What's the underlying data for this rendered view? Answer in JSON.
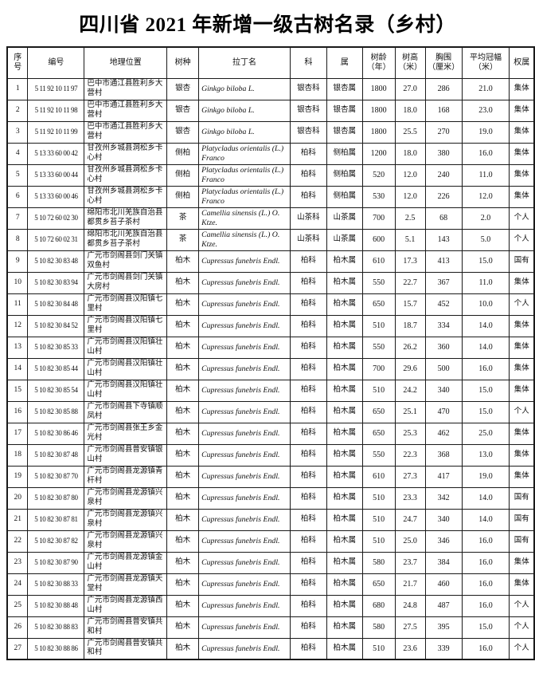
{
  "title": "四川省 2021 年新增一级古树名录（乡村）",
  "table": {
    "columns": [
      {
        "key": "index",
        "label": "序\n号"
      },
      {
        "key": "code",
        "label": "编号"
      },
      {
        "key": "location",
        "label": "地理位置"
      },
      {
        "key": "species",
        "label": "树种"
      },
      {
        "key": "latin",
        "label": "拉丁名"
      },
      {
        "key": "family",
        "label": "科"
      },
      {
        "key": "genus",
        "label": "属"
      },
      {
        "key": "age",
        "label": "树龄\n（年）"
      },
      {
        "key": "height",
        "label": "树高\n（米）"
      },
      {
        "key": "girth",
        "label": "胸围\n（厘米）"
      },
      {
        "key": "crown",
        "label": "平均冠幅\n（米）"
      },
      {
        "key": "ownership",
        "label": "权属"
      }
    ],
    "rows": [
      {
        "index": "1",
        "code": "5 11 92 10 11 97",
        "location": "巴中市通江县胜利乡大营村",
        "species": "银杏",
        "latin": "Ginkgo biloba L.",
        "family": "银杏科",
        "genus": "银杏属",
        "age": "1800",
        "height": "27.0",
        "girth": "286",
        "crown": "21.0",
        "ownership": "集体"
      },
      {
        "index": "2",
        "code": "5 11 92 10 11 98",
        "location": "巴中市通江县胜利乡大营村",
        "species": "银杏",
        "latin": "Ginkgo biloba L.",
        "family": "银杏科",
        "genus": "银杏属",
        "age": "1800",
        "height": "18.0",
        "girth": "168",
        "crown": "23.0",
        "ownership": "集体"
      },
      {
        "index": "3",
        "code": "5 11 92 10 11 99",
        "location": "巴中市通江县胜利乡大营村",
        "species": "银杏",
        "latin": "Ginkgo biloba L.",
        "family": "银杏科",
        "genus": "银杏属",
        "age": "1800",
        "height": "25.5",
        "girth": "270",
        "crown": "19.0",
        "ownership": "集体"
      },
      {
        "index": "4",
        "code": "5 13 33 60 00 42",
        "location": "甘孜州乡城县洞松乡卡心村",
        "species": "侧柏",
        "latin": "Platycladus orientalis (L.) Franco",
        "family": "柏科",
        "genus": "侧柏属",
        "age": "1200",
        "height": "18.0",
        "girth": "380",
        "crown": "16.0",
        "ownership": "集体"
      },
      {
        "index": "5",
        "code": "5 13 33 60 00 44",
        "location": "甘孜州乡城县洞松乡卡心村",
        "species": "侧柏",
        "latin": "Platycladus orientalis (L.) Franco",
        "family": "柏科",
        "genus": "侧柏属",
        "age": "520",
        "height": "12.0",
        "girth": "240",
        "crown": "11.0",
        "ownership": "集体"
      },
      {
        "index": "6",
        "code": "5 13 33 60 00 46",
        "location": "甘孜州乡城县洞松乡卡心村",
        "species": "侧柏",
        "latin": "Platycladus orientalis (L.) Franco",
        "family": "柏科",
        "genus": "侧柏属",
        "age": "530",
        "height": "12.0",
        "girth": "226",
        "crown": "12.0",
        "ownership": "集体"
      },
      {
        "index": "7",
        "code": "5 10 72 60 02 30",
        "location": "绵阳市北川羌族自治县都贯乡苔子茶村",
        "species": "茶",
        "latin": "Camellia sinensis (L.) O. Ktze.",
        "family": "山茶科",
        "genus": "山茶属",
        "age": "700",
        "height": "2.5",
        "girth": "68",
        "crown": "2.0",
        "ownership": "个人"
      },
      {
        "index": "8",
        "code": "5 10 72 60 02 31",
        "location": "绵阳市北川羌族自治县都贯乡苔子茶村",
        "species": "茶",
        "latin": "Camellia sinensis (L.) O. Ktze.",
        "family": "山茶科",
        "genus": "山茶属",
        "age": "600",
        "height": "5.1",
        "girth": "143",
        "crown": "5.0",
        "ownership": "个人"
      },
      {
        "index": "9",
        "code": "5 10 82 30 83 48",
        "location": "广元市剑阁县剑门关镇双鱼村",
        "species": "柏木",
        "latin": "Cupressus funebris Endl.",
        "family": "柏科",
        "genus": "柏木属",
        "age": "610",
        "height": "17.3",
        "girth": "413",
        "crown": "15.0",
        "ownership": "国有"
      },
      {
        "index": "10",
        "code": "5 10 82 30 83 94",
        "location": "广元市剑阁县剑门关镇大房村",
        "species": "柏木",
        "latin": "Cupressus funebris Endl.",
        "family": "柏科",
        "genus": "柏木属",
        "age": "550",
        "height": "22.7",
        "girth": "367",
        "crown": "11.0",
        "ownership": "集体"
      },
      {
        "index": "11",
        "code": "5 10 82 30 84 48",
        "location": "广元市剑阁县汉阳镇七里村",
        "species": "柏木",
        "latin": "Cupressus funebris Endl.",
        "family": "柏科",
        "genus": "柏木属",
        "age": "650",
        "height": "15.7",
        "girth": "452",
        "crown": "10.0",
        "ownership": "个人"
      },
      {
        "index": "12",
        "code": "5 10 82 30 84 52",
        "location": "广元市剑阁县汉阳镇七里村",
        "species": "柏木",
        "latin": "Cupressus funebris Endl.",
        "family": "柏科",
        "genus": "柏木属",
        "age": "510",
        "height": "18.7",
        "girth": "334",
        "crown": "14.0",
        "ownership": "集体"
      },
      {
        "index": "13",
        "code": "5 10 82 30 85 33",
        "location": "广元市剑阁县汉阳镇壮山村",
        "species": "柏木",
        "latin": "Cupressus funebris Endl.",
        "family": "柏科",
        "genus": "柏木属",
        "age": "550",
        "height": "26.2",
        "girth": "360",
        "crown": "14.0",
        "ownership": "集体"
      },
      {
        "index": "14",
        "code": "5 10 82 30 85 44",
        "location": "广元市剑阁县汉阳镇壮山村",
        "species": "柏木",
        "latin": "Cupressus funebris Endl.",
        "family": "柏科",
        "genus": "柏木属",
        "age": "700",
        "height": "29.6",
        "girth": "500",
        "crown": "16.0",
        "ownership": "集体"
      },
      {
        "index": "15",
        "code": "5 10 82 30 85 54",
        "location": "广元市剑阁县汉阳镇壮山村",
        "species": "柏木",
        "latin": "Cupressus funebris Endl.",
        "family": "柏科",
        "genus": "柏木属",
        "age": "510",
        "height": "24.2",
        "girth": "340",
        "crown": "15.0",
        "ownership": "集体"
      },
      {
        "index": "16",
        "code": "5 10 82 30 85 88",
        "location": "广元市剑阁县下寺镇顺凤村",
        "species": "柏木",
        "latin": "Cupressus funebris Endl.",
        "family": "柏科",
        "genus": "柏木属",
        "age": "650",
        "height": "25.1",
        "girth": "470",
        "crown": "15.0",
        "ownership": "个人"
      },
      {
        "index": "17",
        "code": "5 10 82 30 86 46",
        "location": "广元市剑阁县张王乡金光村",
        "species": "柏木",
        "latin": "Cupressus funebris Endl.",
        "family": "柏科",
        "genus": "柏木属",
        "age": "650",
        "height": "25.3",
        "girth": "462",
        "crown": "25.0",
        "ownership": "集体"
      },
      {
        "index": "18",
        "code": "5 10 82 30 87 48",
        "location": "广元市剑阁县普安镇银山村",
        "species": "柏木",
        "latin": "Cupressus funebris Endl.",
        "family": "柏科",
        "genus": "柏木属",
        "age": "550",
        "height": "22.3",
        "girth": "368",
        "crown": "13.0",
        "ownership": "集体"
      },
      {
        "index": "19",
        "code": "5 10 82 30 87 70",
        "location": "广元市剑阁县龙源镇青杆村",
        "species": "柏木",
        "latin": "Cupressus funebris Endl.",
        "family": "柏科",
        "genus": "柏木属",
        "age": "610",
        "height": "27.3",
        "girth": "417",
        "crown": "19.0",
        "ownership": "集体"
      },
      {
        "index": "20",
        "code": "5 10 82 30 87 80",
        "location": "广元市剑阁县龙源镇兴泉村",
        "species": "柏木",
        "latin": "Cupressus funebris Endl.",
        "family": "柏科",
        "genus": "柏木属",
        "age": "510",
        "height": "23.3",
        "girth": "342",
        "crown": "14.0",
        "ownership": "国有"
      },
      {
        "index": "21",
        "code": "5 10 82 30 87 81",
        "location": "广元市剑阁县龙源镇兴泉村",
        "species": "柏木",
        "latin": "Cupressus funebris Endl.",
        "family": "柏科",
        "genus": "柏木属",
        "age": "510",
        "height": "24.7",
        "girth": "340",
        "crown": "14.0",
        "ownership": "国有"
      },
      {
        "index": "22",
        "code": "5 10 82 30 87 82",
        "location": "广元市剑阁县龙源镇兴泉村",
        "species": "柏木",
        "latin": "Cupressus funebris Endl.",
        "family": "柏科",
        "genus": "柏木属",
        "age": "510",
        "height": "25.0",
        "girth": "346",
        "crown": "16.0",
        "ownership": "国有"
      },
      {
        "index": "23",
        "code": "5 10 82 30 87 90",
        "location": "广元市剑阁县龙源镇金山村",
        "species": "柏木",
        "latin": "Cupressus funebris Endl.",
        "family": "柏科",
        "genus": "柏木属",
        "age": "580",
        "height": "23.7",
        "girth": "384",
        "crown": "16.0",
        "ownership": "集体"
      },
      {
        "index": "24",
        "code": "5 10 82 30 88 33",
        "location": "广元市剑阁县龙源镇天堂村",
        "species": "柏木",
        "latin": "Cupressus funebris Endl.",
        "family": "柏科",
        "genus": "柏木属",
        "age": "650",
        "height": "21.7",
        "girth": "460",
        "crown": "16.0",
        "ownership": "集体"
      },
      {
        "index": "25",
        "code": "5 10 82 30 88 48",
        "location": "广元市剑阁县龙源镇西山村",
        "species": "柏木",
        "latin": "Cupressus funebris Endl.",
        "family": "柏科",
        "genus": "柏木属",
        "age": "680",
        "height": "24.8",
        "girth": "487",
        "crown": "16.0",
        "ownership": "个人"
      },
      {
        "index": "26",
        "code": "5 10 82 30 88 83",
        "location": "广元市剑阁县普安镇共和村",
        "species": "柏木",
        "latin": "Cupressus funebris Endl.",
        "family": "柏科",
        "genus": "柏木属",
        "age": "580",
        "height": "27.5",
        "girth": "395",
        "crown": "15.0",
        "ownership": "个人"
      },
      {
        "index": "27",
        "code": "5 10 82 30 88 86",
        "location": "广元市剑阁县普安镇共和村",
        "species": "柏木",
        "latin": "Cupressus funebris Endl.",
        "family": "柏科",
        "genus": "柏木属",
        "age": "510",
        "height": "23.6",
        "girth": "339",
        "crown": "16.0",
        "ownership": "个人"
      }
    ]
  }
}
